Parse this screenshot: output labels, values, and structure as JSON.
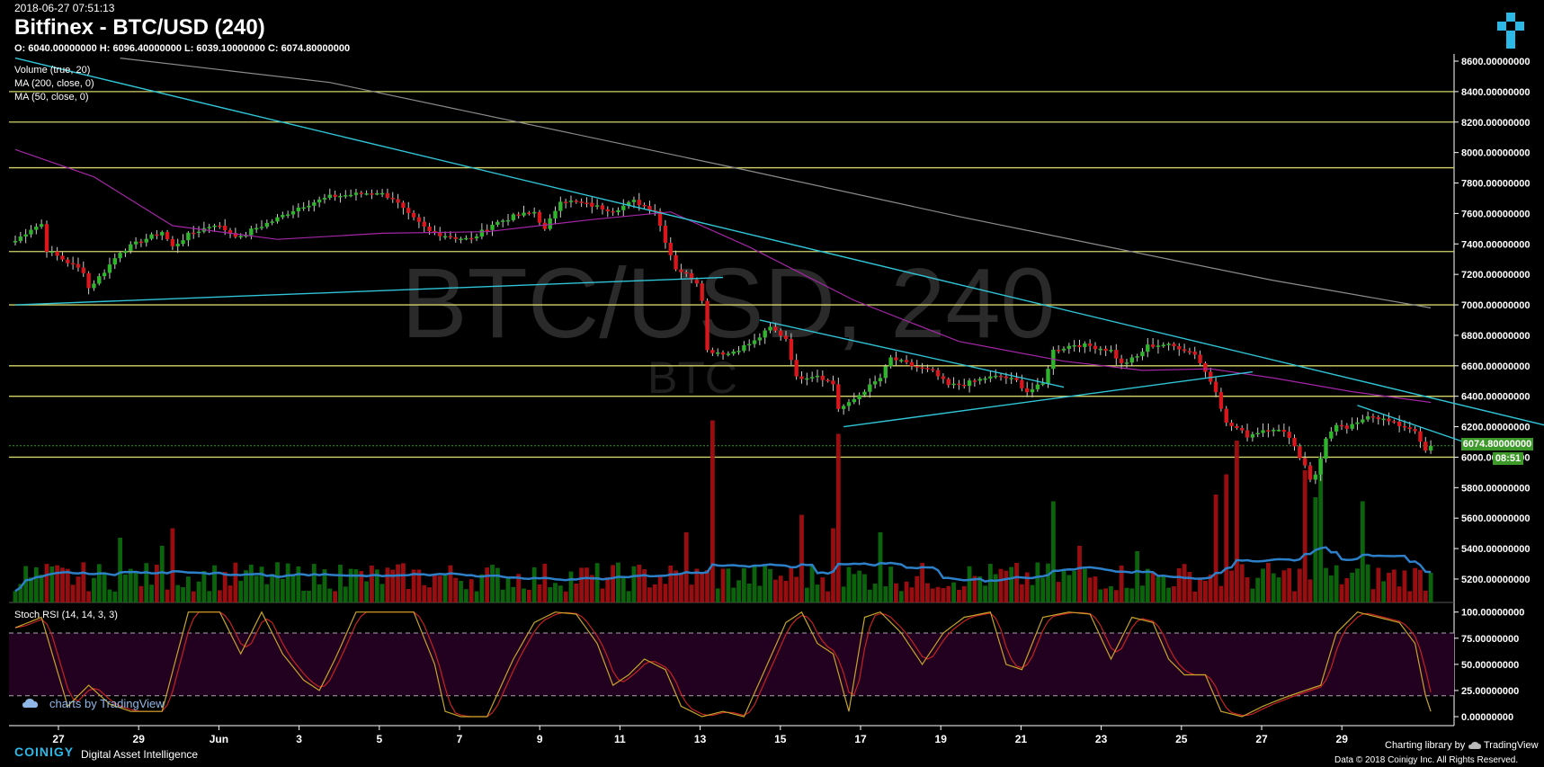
{
  "header": {
    "timestamp": "2018-06-27 07:51:13",
    "title": "Bitfinex - BTC/USD (240)",
    "ohlc": "O: 6040.00000000 H: 6096.40000000 L: 6039.10000000 C: 6074.80000000"
  },
  "watermark": {
    "main": "BTC/USD, 240",
    "sub": "BTC"
  },
  "indicators": {
    "volume": "Volume (true, 20)",
    "ma200": "MA (200, close, 0)",
    "ma50": "MA (50, close, 0)",
    "stoch": "Stoch RSI (14, 14, 3, 3)"
  },
  "last_price_label": "6074.80000000",
  "countdown_label": "08:51",
  "footer": {
    "tradingview_credit": "charts by TradingView",
    "brand": "COINIGY",
    "brand_sub": "Digital Asset Intelligence",
    "charting_library": "Charting library by",
    "tradingview": "TradingView",
    "data_credit": "Data © 2018   Coinigy Inc. All Rights Reserved."
  },
  "colors": {
    "up": "#2fb52c",
    "down": "#d9161c",
    "hline": "#d4d46a",
    "trend": "#2fc4d6",
    "ma50": "#a426a6",
    "ma200": "#8c8c8c",
    "vol_ma": "#2d7fc7",
    "stoch_k": "#c7a52a",
    "stoch_d": "#c42222",
    "rsi_band": "#22001f",
    "accent": "#2db9e8",
    "tag": "#3d9a2a"
  },
  "chart_data": [
    {
      "type": "candlestick",
      "title": "Bitfinex - BTC/USD (240)",
      "x_ticks": [
        "27",
        "29",
        "Jun",
        "3",
        "5",
        "7",
        "9",
        "11",
        "13",
        "15",
        "17",
        "19",
        "21",
        "23",
        "25",
        "27",
        "29"
      ],
      "y_ticks": [
        "8600.00000000",
        "8400.00000000",
        "8200.00000000",
        "8000.00000000",
        "7800.00000000",
        "7600.00000000",
        "7400.00000000",
        "7200.00000000",
        "7000.00000000",
        "6800.00000000",
        "6600.00000000",
        "6400.00000000",
        "6200.00000000",
        "6000.00000000",
        "5800.00000000",
        "5600.00000000",
        "5400.00000000",
        "5200.00000000"
      ],
      "ylim": [
        5100,
        8600
      ],
      "horizontal_levels": [
        8400,
        8200,
        7900,
        7350,
        7000,
        6600,
        6400,
        6000
      ],
      "last_close": 6074.8,
      "price_anchors": [
        [
          0,
          7420
        ],
        [
          3,
          7500
        ],
        [
          5,
          7530
        ],
        [
          6,
          7360
        ],
        [
          10,
          7280
        ],
        [
          13,
          7220
        ],
        [
          14,
          7110
        ],
        [
          17,
          7220
        ],
        [
          20,
          7350
        ],
        [
          24,
          7420
        ],
        [
          28,
          7480
        ],
        [
          30,
          7380
        ],
        [
          33,
          7460
        ],
        [
          38,
          7530
        ],
        [
          43,
          7440
        ],
        [
          45,
          7490
        ],
        [
          49,
          7550
        ],
        [
          54,
          7640
        ],
        [
          60,
          7710
        ],
        [
          66,
          7730
        ],
        [
          69,
          7740
        ],
        [
          72,
          7700
        ],
        [
          75,
          7590
        ],
        [
          79,
          7480
        ],
        [
          84,
          7440
        ],
        [
          87,
          7430
        ],
        [
          91,
          7530
        ],
        [
          95,
          7580
        ],
        [
          99,
          7610
        ],
        [
          101,
          7490
        ],
        [
          104,
          7690
        ],
        [
          109,
          7660
        ],
        [
          114,
          7620
        ],
        [
          118,
          7680
        ],
        [
          122,
          7620
        ],
        [
          124,
          7420
        ],
        [
          126,
          7240
        ],
        [
          128,
          7200
        ],
        [
          130,
          7150
        ],
        [
          131,
          7040
        ],
        [
          132,
          6700
        ],
        [
          136,
          6680
        ],
        [
          141,
          6760
        ],
        [
          144,
          6850
        ],
        [
          147,
          6780
        ],
        [
          149,
          6520
        ],
        [
          153,
          6540
        ],
        [
          156,
          6480
        ],
        [
          157,
          6320
        ],
        [
          159,
          6350
        ],
        [
          162,
          6440
        ],
        [
          165,
          6520
        ],
        [
          167,
          6650
        ],
        [
          171,
          6600
        ],
        [
          175,
          6560
        ],
        [
          178,
          6470
        ],
        [
          181,
          6480
        ],
        [
          185,
          6520
        ],
        [
          188,
          6530
        ],
        [
          191,
          6500
        ],
        [
          193,
          6430
        ],
        [
          196,
          6480
        ],
        [
          198,
          6700
        ],
        [
          202,
          6740
        ],
        [
          205,
          6730
        ],
        [
          209,
          6700
        ],
        [
          211,
          6610
        ],
        [
          214,
          6660
        ],
        [
          216,
          6730
        ],
        [
          219,
          6740
        ],
        [
          222,
          6720
        ],
        [
          225,
          6680
        ],
        [
          227,
          6560
        ],
        [
          229,
          6440
        ],
        [
          231,
          6220
        ],
        [
          233,
          6190
        ],
        [
          235,
          6140
        ],
        [
          238,
          6180
        ],
        [
          240,
          6190
        ],
        [
          243,
          6140
        ],
        [
          245,
          6000
        ],
        [
          246,
          5950
        ],
        [
          247,
          5860
        ],
        [
          248,
          5880
        ],
        [
          249,
          5990
        ],
        [
          250,
          6130
        ],
        [
          252,
          6200
        ],
        [
          254,
          6190
        ],
        [
          256,
          6220
        ],
        [
          258,
          6280
        ],
        [
          260,
          6260
        ],
        [
          263,
          6220
        ],
        [
          265,
          6200
        ],
        [
          267,
          6180
        ],
        [
          268,
          6090
        ],
        [
          269,
          6040
        ],
        [
          270,
          6075
        ]
      ],
      "series": [
        {
          "name": "MA (200, close, 0)",
          "points": [
            [
              20,
              8620
            ],
            [
              60,
              8460
            ],
            [
              100,
              8170
            ],
            [
              140,
              7880
            ],
            [
              180,
              7580
            ],
            [
              210,
              7370
            ],
            [
              240,
              7160
            ],
            [
              270,
              6980
            ]
          ]
        },
        {
          "name": "MA (50, close, 0)",
          "points": [
            [
              0,
              8020
            ],
            [
              15,
              7840
            ],
            [
              30,
              7520
            ],
            [
              50,
              7430
            ],
            [
              70,
              7470
            ],
            [
              90,
              7480
            ],
            [
              110,
              7560
            ],
            [
              125,
              7610
            ],
            [
              140,
              7380
            ],
            [
              160,
              7030
            ],
            [
              180,
              6760
            ],
            [
              200,
              6630
            ],
            [
              215,
              6570
            ],
            [
              228,
              6580
            ],
            [
              240,
              6520
            ],
            [
              255,
              6430
            ],
            [
              270,
              6360
            ]
          ]
        }
      ],
      "trendlines": [
        {
          "from": [
            0,
            7000
          ],
          "to": [
            135,
            7180
          ]
        },
        {
          "from": [
            0,
            8620
          ],
          "to": [
            293,
            6200
          ]
        },
        {
          "from": [
            142,
            6900
          ],
          "to": [
            200,
            6460
          ]
        },
        {
          "from": [
            158,
            6200
          ],
          "to": [
            236,
            6560
          ]
        },
        {
          "from": [
            256,
            6340
          ],
          "to": [
            278,
            6080
          ]
        }
      ]
    },
    {
      "type": "bar",
      "title": "Volume (true, 20)",
      "volume_spikes": [
        [
          20,
          0.48
        ],
        [
          28,
          0.42
        ],
        [
          30,
          0.55
        ],
        [
          62,
          0.28
        ],
        [
          128,
          0.52
        ],
        [
          133,
          1.35
        ],
        [
          150,
          0.65
        ],
        [
          156,
          0.55
        ],
        [
          157,
          1.25
        ],
        [
          165,
          0.52
        ],
        [
          198,
          0.75
        ],
        [
          203,
          0.42
        ],
        [
          214,
          0.38
        ],
        [
          229,
          0.8
        ],
        [
          231,
          0.95
        ],
        [
          233,
          1.2
        ],
        [
          246,
          0.98
        ],
        [
          248,
          0.78
        ],
        [
          249,
          1.08
        ],
        [
          257,
          0.75
        ]
      ]
    },
    {
      "type": "line",
      "title": "Stoch RSI (14, 14, 3, 3)",
      "y_ticks": [
        "100.00000000",
        "75.00000000",
        "50.00000000",
        "25.00000000",
        "0.00000000"
      ],
      "ylim": [
        0,
        100
      ],
      "bands": [
        20,
        80
      ],
      "k_anchors": [
        [
          0,
          85
        ],
        [
          5,
          95
        ],
        [
          10,
          10
        ],
        [
          14,
          30
        ],
        [
          18,
          12
        ],
        [
          22,
          5
        ],
        [
          28,
          5
        ],
        [
          33,
          100
        ],
        [
          39,
          100
        ],
        [
          43,
          60
        ],
        [
          47,
          100
        ],
        [
          51,
          60
        ],
        [
          55,
          35
        ],
        [
          58,
          25
        ],
        [
          61,
          55
        ],
        [
          65,
          100
        ],
        [
          70,
          100
        ],
        [
          76,
          100
        ],
        [
          80,
          50
        ],
        [
          82,
          5
        ],
        [
          85,
          0
        ],
        [
          90,
          0
        ],
        [
          95,
          55
        ],
        [
          99,
          90
        ],
        [
          103,
          100
        ],
        [
          107,
          98
        ],
        [
          111,
          70
        ],
        [
          114,
          30
        ],
        [
          117,
          40
        ],
        [
          120,
          55
        ],
        [
          124,
          45
        ],
        [
          127,
          10
        ],
        [
          131,
          0
        ],
        [
          135,
          5
        ],
        [
          139,
          0
        ],
        [
          143,
          45
        ],
        [
          147,
          90
        ],
        [
          150,
          100
        ],
        [
          153,
          70
        ],
        [
          156,
          60
        ],
        [
          159,
          5
        ],
        [
          162,
          95
        ],
        [
          165,
          100
        ],
        [
          169,
          80
        ],
        [
          173,
          50
        ],
        [
          177,
          80
        ],
        [
          181,
          95
        ],
        [
          186,
          100
        ],
        [
          189,
          50
        ],
        [
          192,
          45
        ],
        [
          196,
          95
        ],
        [
          201,
          100
        ],
        [
          205,
          98
        ],
        [
          209,
          55
        ],
        [
          213,
          95
        ],
        [
          217,
          90
        ],
        [
          220,
          55
        ],
        [
          223,
          40
        ],
        [
          227,
          40
        ],
        [
          230,
          5
        ],
        [
          234,
          0
        ],
        [
          238,
          10
        ],
        [
          242,
          18
        ],
        [
          246,
          25
        ],
        [
          249,
          30
        ],
        [
          252,
          80
        ],
        [
          256,
          100
        ],
        [
          260,
          95
        ],
        [
          264,
          90
        ],
        [
          267,
          70
        ],
        [
          269,
          20
        ],
        [
          270,
          5
        ]
      ]
    }
  ]
}
